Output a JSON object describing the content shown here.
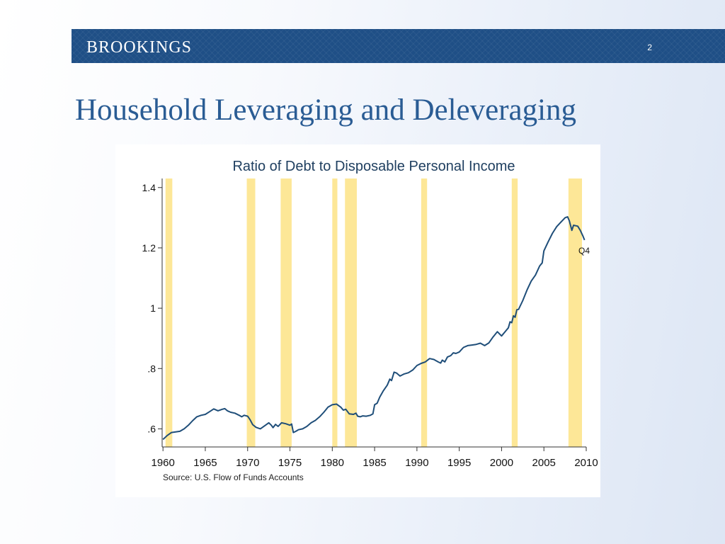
{
  "header": {
    "brand": "BROOKINGS",
    "slide_number": "2"
  },
  "slide": {
    "title": "Household Leveraging and Deleveraging"
  },
  "chart_data": {
    "type": "line",
    "title": "Ratio of Debt to Disposable Personal Income",
    "source": "Source: U.S. Flow of Funds Accounts",
    "xlabel": "",
    "ylabel": "",
    "xlim": [
      1959.9,
      2010
    ],
    "ylim": [
      0.54,
      1.43
    ],
    "x_ticks": [
      1960,
      1965,
      1970,
      1975,
      1980,
      1985,
      1990,
      1995,
      2000,
      2005,
      2010
    ],
    "x_tick_labels": [
      "1960",
      "1965",
      "1970",
      "1975",
      "1980",
      "1985",
      "1990",
      "1995",
      "2000",
      "2005",
      "2010"
    ],
    "y_ticks": [
      0.6,
      0.8,
      1.0,
      1.2,
      1.4
    ],
    "y_tick_labels": [
      ".6",
      ".8",
      "1",
      "1.2",
      "1.4"
    ],
    "annotation": {
      "text": "Q4",
      "x": 2009.75,
      "y": 1.2
    },
    "line_color": "#1f4e79",
    "recession_color": "#fde797",
    "recessions": [
      [
        1960.3,
        1961.1
      ],
      [
        1969.9,
        1970.9
      ],
      [
        1973.9,
        1975.2
      ],
      [
        1980.0,
        1980.6
      ],
      [
        1981.5,
        1982.9
      ],
      [
        1990.5,
        1991.2
      ],
      [
        2001.2,
        2001.9
      ],
      [
        2007.9,
        2009.5
      ]
    ],
    "series": [
      {
        "values": [
          [
            1960.0,
            0.565
          ],
          [
            1960.5,
            0.578
          ],
          [
            1961.0,
            0.588
          ],
          [
            1961.5,
            0.59
          ],
          [
            1962.0,
            0.592
          ],
          [
            1962.5,
            0.6
          ],
          [
            1963.0,
            0.612
          ],
          [
            1963.5,
            0.627
          ],
          [
            1964.0,
            0.64
          ],
          [
            1964.5,
            0.645
          ],
          [
            1965.0,
            0.648
          ],
          [
            1965.5,
            0.657
          ],
          [
            1966.0,
            0.666
          ],
          [
            1966.5,
            0.66
          ],
          [
            1967.0,
            0.665
          ],
          [
            1967.3,
            0.667
          ],
          [
            1967.6,
            0.66
          ],
          [
            1968.0,
            0.655
          ],
          [
            1968.5,
            0.652
          ],
          [
            1969.0,
            0.645
          ],
          [
            1969.3,
            0.64
          ],
          [
            1969.6,
            0.645
          ],
          [
            1970.0,
            0.642
          ],
          [
            1970.3,
            0.63
          ],
          [
            1970.6,
            0.614
          ],
          [
            1971.0,
            0.605
          ],
          [
            1971.5,
            0.6
          ],
          [
            1972.0,
            0.61
          ],
          [
            1972.5,
            0.62
          ],
          [
            1972.8,
            0.612
          ],
          [
            1973.0,
            0.604
          ],
          [
            1973.3,
            0.615
          ],
          [
            1973.6,
            0.608
          ],
          [
            1974.0,
            0.62
          ],
          [
            1974.5,
            0.617
          ],
          [
            1975.0,
            0.612
          ],
          [
            1975.2,
            0.616
          ],
          [
            1975.4,
            0.588
          ],
          [
            1975.7,
            0.592
          ],
          [
            1976.0,
            0.597
          ],
          [
            1976.5,
            0.6
          ],
          [
            1977.0,
            0.608
          ],
          [
            1977.5,
            0.62
          ],
          [
            1978.0,
            0.628
          ],
          [
            1978.5,
            0.64
          ],
          [
            1979.0,
            0.655
          ],
          [
            1979.5,
            0.672
          ],
          [
            1980.0,
            0.68
          ],
          [
            1980.5,
            0.682
          ],
          [
            1981.0,
            0.672
          ],
          [
            1981.3,
            0.662
          ],
          [
            1981.6,
            0.665
          ],
          [
            1982.0,
            0.65
          ],
          [
            1982.5,
            0.648
          ],
          [
            1982.8,
            0.652
          ],
          [
            1983.0,
            0.642
          ],
          [
            1983.3,
            0.64
          ],
          [
            1983.6,
            0.643
          ],
          [
            1984.0,
            0.642
          ],
          [
            1984.5,
            0.645
          ],
          [
            1984.8,
            0.65
          ],
          [
            1985.0,
            0.68
          ],
          [
            1985.3,
            0.685
          ],
          [
            1985.6,
            0.705
          ],
          [
            1986.0,
            0.725
          ],
          [
            1986.5,
            0.745
          ],
          [
            1986.8,
            0.765
          ],
          [
            1987.0,
            0.76
          ],
          [
            1987.3,
            0.788
          ],
          [
            1987.6,
            0.785
          ],
          [
            1988.0,
            0.775
          ],
          [
            1988.5,
            0.782
          ],
          [
            1989.0,
            0.786
          ],
          [
            1989.5,
            0.795
          ],
          [
            1990.0,
            0.81
          ],
          [
            1990.5,
            0.817
          ],
          [
            1991.0,
            0.822
          ],
          [
            1991.5,
            0.833
          ],
          [
            1992.0,
            0.83
          ],
          [
            1992.5,
            0.822
          ],
          [
            1992.8,
            0.818
          ],
          [
            1993.0,
            0.828
          ],
          [
            1993.3,
            0.822
          ],
          [
            1993.6,
            0.838
          ],
          [
            1994.0,
            0.843
          ],
          [
            1994.3,
            0.852
          ],
          [
            1994.6,
            0.85
          ],
          [
            1995.0,
            0.855
          ],
          [
            1995.5,
            0.87
          ],
          [
            1996.0,
            0.876
          ],
          [
            1996.5,
            0.878
          ],
          [
            1997.0,
            0.88
          ],
          [
            1997.5,
            0.884
          ],
          [
            1998.0,
            0.876
          ],
          [
            1998.5,
            0.885
          ],
          [
            1999.0,
            0.905
          ],
          [
            1999.5,
            0.922
          ],
          [
            2000.0,
            0.908
          ],
          [
            2000.5,
            0.925
          ],
          [
            2000.8,
            0.935
          ],
          [
            2001.0,
            0.955
          ],
          [
            2001.2,
            0.952
          ],
          [
            2001.4,
            0.975
          ],
          [
            2001.6,
            0.97
          ],
          [
            2001.8,
            0.995
          ],
          [
            2002.0,
            0.996
          ],
          [
            2002.5,
            1.025
          ],
          [
            2003.0,
            1.06
          ],
          [
            2003.5,
            1.09
          ],
          [
            2004.0,
            1.11
          ],
          [
            2004.5,
            1.14
          ],
          [
            2004.8,
            1.15
          ],
          [
            2005.0,
            1.19
          ],
          [
            2005.5,
            1.22
          ],
          [
            2006.0,
            1.248
          ],
          [
            2006.5,
            1.27
          ],
          [
            2007.0,
            1.285
          ],
          [
            2007.5,
            1.3
          ],
          [
            2007.8,
            1.303
          ],
          [
            2008.0,
            1.29
          ],
          [
            2008.3,
            1.258
          ],
          [
            2008.5,
            1.275
          ],
          [
            2009.0,
            1.272
          ],
          [
            2009.3,
            1.258
          ],
          [
            2009.6,
            1.24
          ],
          [
            2009.8,
            1.226
          ]
        ]
      }
    ]
  }
}
